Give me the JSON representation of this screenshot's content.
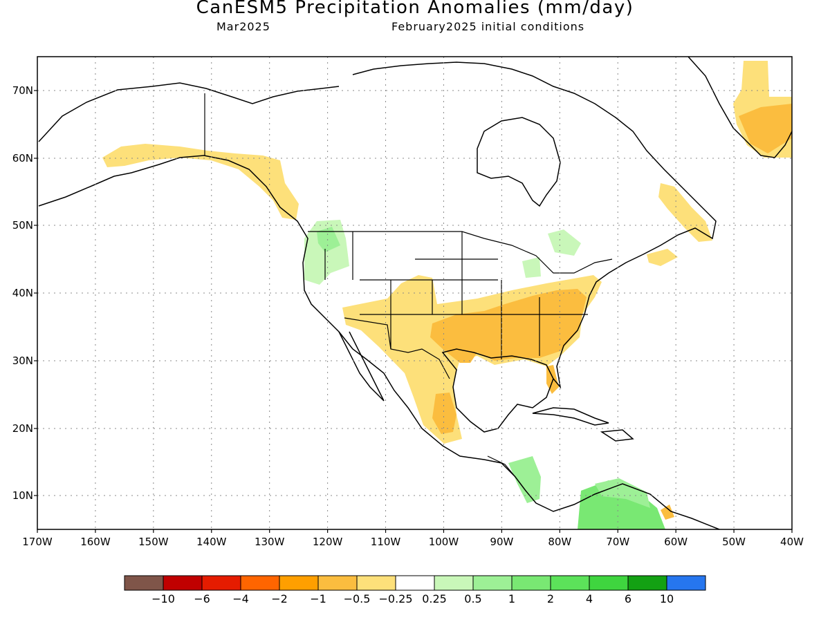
{
  "header": {
    "title": "CanESM5 Precipitation Anomalies (mm/day)",
    "valid_month": "Mar2025",
    "init": "February2025 initial conditions"
  },
  "map": {
    "type": "filled-contour-map",
    "variable": "Precipitation Anomalies (mm/day)",
    "lat_range": [
      5,
      75
    ],
    "lon_range": [
      "170W",
      "40W"
    ],
    "lat_ticks": [
      "70N",
      "60N",
      "50N",
      "40N",
      "30N",
      "20N",
      "10N"
    ],
    "lon_ticks": [
      "170W",
      "160W",
      "150W",
      "140W",
      "130W",
      "120W",
      "110W",
      "100W",
      "90W",
      "80W",
      "70W",
      "60W",
      "50W",
      "40W"
    ],
    "gridlines": "dotted",
    "land_color": "#ffffff",
    "coast_color": "#000000"
  },
  "colorbar": {
    "colors": [
      "#7f5549",
      "#c00000",
      "#e51c00",
      "#ff6500",
      "#ff9f00",
      "#fbbd3f",
      "#fde07a",
      "#ffffff",
      "#c9f7b9",
      "#9df096",
      "#79e873",
      "#5ce25a",
      "#3fd53f",
      "#13a113",
      "#2676ef"
    ],
    "labels": [
      "−10",
      "−6",
      "−4",
      "−2",
      "−1",
      "−0.5",
      "−0.25",
      "0.25",
      "0.5",
      "1",
      "2",
      "4",
      "6",
      "10"
    ]
  }
}
